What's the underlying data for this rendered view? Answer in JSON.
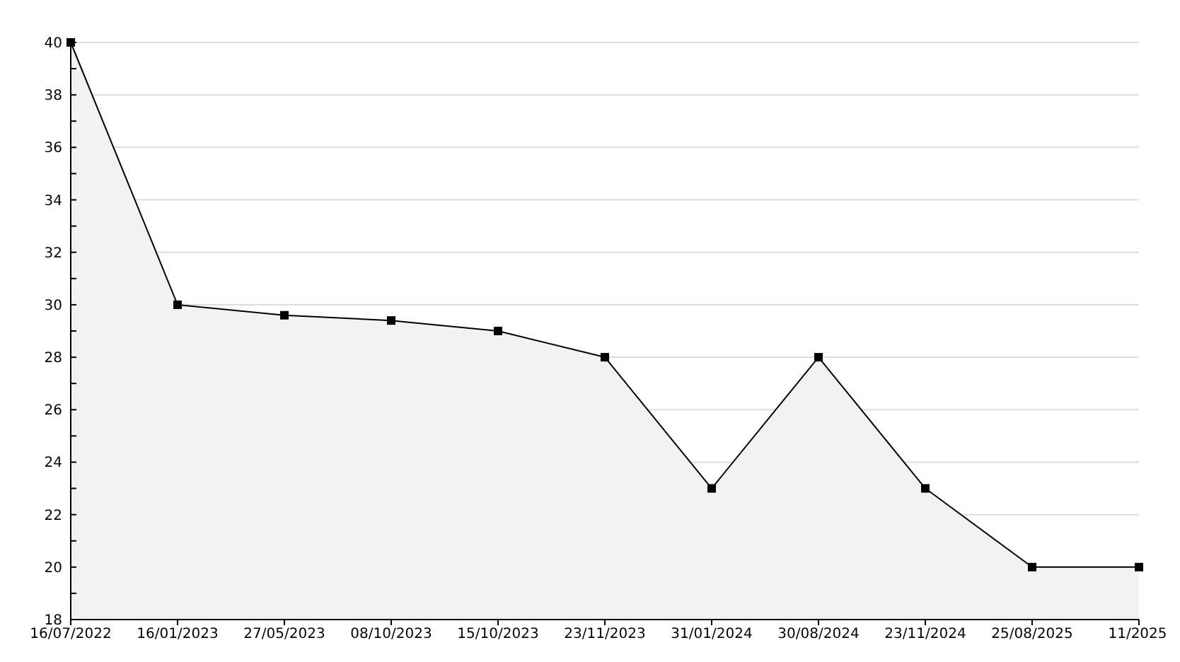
{
  "chart_data": {
    "type": "area",
    "categories": [
      "16/07/2022",
      "16/01/2023",
      "27/05/2023",
      "08/10/2023",
      "15/10/2023",
      "23/11/2023",
      "31/01/2024",
      "30/08/2024",
      "23/11/2024",
      "25/08/2025",
      "11/2025"
    ],
    "series": [
      {
        "color": "#000000",
        "values": [
          40,
          30,
          29.6,
          29.4,
          29,
          28,
          23,
          28,
          23,
          20,
          20
        ]
      }
    ],
    "ylim": [
      18,
      40
    ],
    "yticks": [
      18,
      {
        "value": 19,
        "label": null
      },
      20,
      {
        "value": 21,
        "label": null
      },
      22,
      {
        "value": 23,
        "label": null
      },
      24,
      {
        "value": 25,
        "label": null
      },
      26,
      {
        "value": 27,
        "label": null
      },
      28,
      {
        "value": 29,
        "label": null
      },
      30,
      {
        "value": 31,
        "label": null
      },
      32,
      {
        "value": 33,
        "label": null
      },
      34,
      {
        "value": 35,
        "label": null
      },
      36,
      {
        "value": 37,
        "label": null
      },
      38,
      {
        "value": 39,
        "label": null
      },
      40
    ],
    "grid": "y",
    "marker": "square",
    "line_style": "solid"
  }
}
